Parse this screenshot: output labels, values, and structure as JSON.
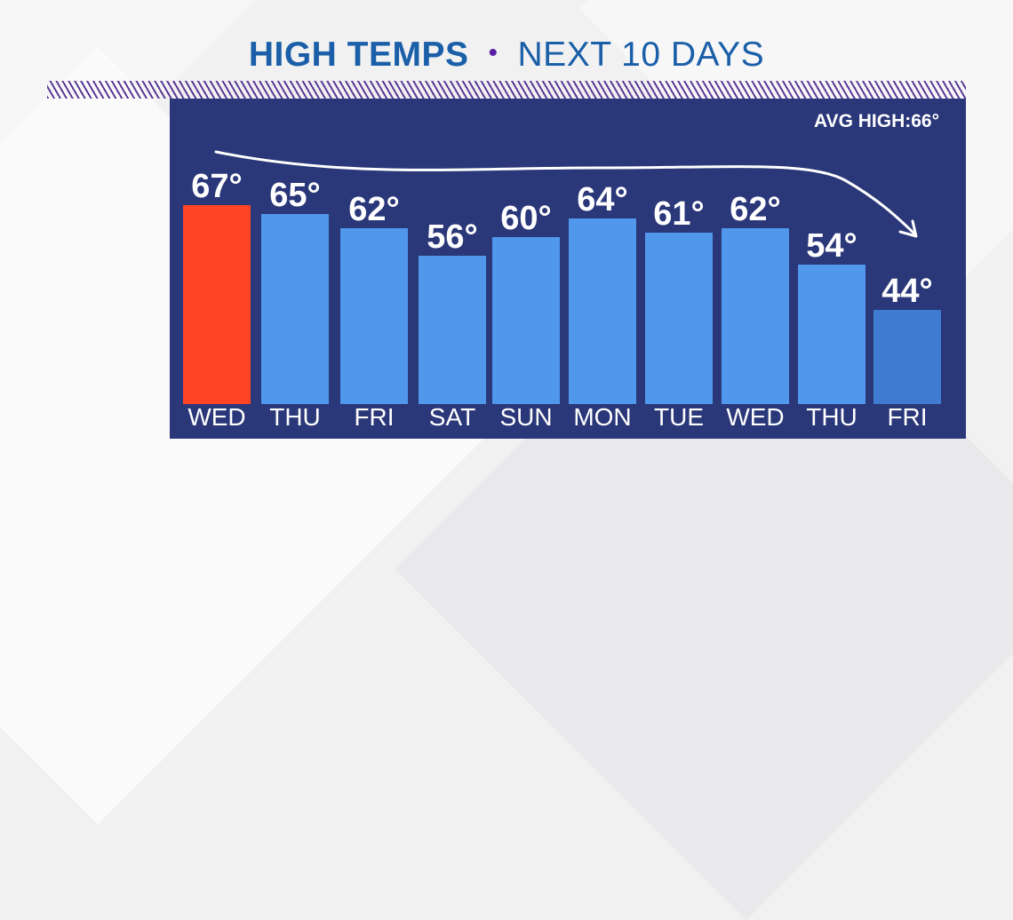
{
  "title": {
    "bold": "HIGH TEMPS",
    "separator": "•",
    "rest": "NEXT 10 DAYS"
  },
  "avg_high_label": "AVG HIGH:66°",
  "colors": {
    "title": "#1a5fa8",
    "separator": "#5b1fa6",
    "panel": "#2a3779",
    "today_bar": "#ff4425",
    "forecast_bar": "#5197ec",
    "last_bar": "#3f7bd1",
    "text": "#ffffff"
  },
  "bars": [
    {
      "day": "WED",
      "value": 67,
      "label": "67°"
    },
    {
      "day": "THU",
      "value": 65,
      "label": "65°"
    },
    {
      "day": "FRI",
      "value": 62,
      "label": "62°"
    },
    {
      "day": "SAT",
      "value": 56,
      "label": "56°"
    },
    {
      "day": "SUN",
      "value": 60,
      "label": "60°"
    },
    {
      "day": "MON",
      "value": 64,
      "label": "64°"
    },
    {
      "day": "TUE",
      "value": 61,
      "label": "61°"
    },
    {
      "day": "WED",
      "value": 62,
      "label": "62°"
    },
    {
      "day": "THU",
      "value": 54,
      "label": "54°"
    },
    {
      "day": "FRI",
      "value": 44,
      "label": "44°"
    }
  ],
  "chart_data": {
    "type": "bar",
    "title": "HIGH TEMPS • NEXT 10 DAYS",
    "categories": [
      "WED",
      "THU",
      "FRI",
      "SAT",
      "SUN",
      "MON",
      "TUE",
      "WED",
      "THU",
      "FRI"
    ],
    "values": [
      67,
      65,
      62,
      56,
      60,
      64,
      61,
      62,
      54,
      44
    ],
    "unit": "°F",
    "xlabel": "",
    "ylabel": "",
    "annotations": [
      "AVG HIGH:66°",
      "downward trend arrow over bars"
    ],
    "grid": false,
    "legend": "none",
    "highlight": {
      "index": 0,
      "color": "#ff4425"
    }
  }
}
